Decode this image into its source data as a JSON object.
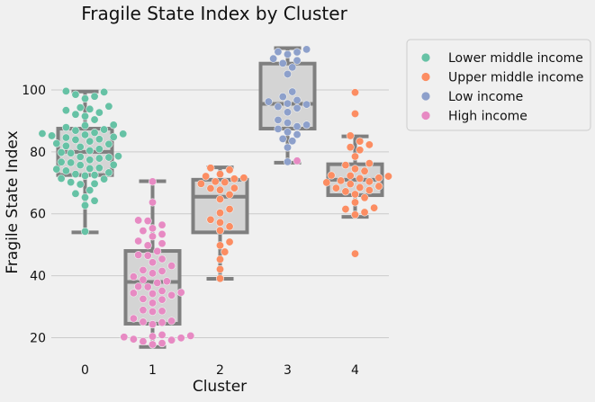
{
  "chart_data": {
    "type": "boxplot-swarm",
    "title": "Fragile State Index by Cluster",
    "xlabel": "Cluster",
    "ylabel": "Fragile State Index",
    "categories": [
      "0",
      "1",
      "2",
      "3",
      "4"
    ],
    "ylim": [
      12,
      118
    ],
    "yticks": [
      20,
      40,
      60,
      80,
      100
    ],
    "grid": "horizontal",
    "legend_position": "outside-right",
    "colors": {
      "Lower middle income": "#66c2a5",
      "Upper middle income": "#fc8d62",
      "Low income": "#8da0cb",
      "High income": "#e78ac3",
      "box_fill": "#d4d4d4",
      "box_edge": "#7f7f7f",
      "grid": "#cbcbcb",
      "background": "#f0f0f0"
    },
    "legend": [
      "Lower middle income",
      "Upper middle income",
      "Low income",
      "High income"
    ],
    "boxes": [
      {
        "category": "0",
        "whisker_low": 54,
        "q1": 72.5,
        "median": 80,
        "q3": 87.5,
        "whisker_high": 99.5
      },
      {
        "category": "1",
        "whisker_low": 17,
        "q1": 24.5,
        "median": 38,
        "q3": 48,
        "whisker_high": 70.5
      },
      {
        "category": "2",
        "whisker_low": 39,
        "q1": 54,
        "median": 65.5,
        "q3": 71,
        "whisker_high": 75
      },
      {
        "category": "3",
        "whisker_low": 76.5,
        "q1": 87.5,
        "median": 95.5,
        "q3": 108.5,
        "whisker_high": 113.5
      },
      {
        "category": "4",
        "whisker_low": 59,
        "q1": 66,
        "median": 71,
        "q3": 76,
        "whisker_high": 85
      }
    ],
    "series": [
      {
        "name": "Lower middle income",
        "category": "0",
        "values": [
          54.3,
          62.7,
          64.2,
          65.3,
          66.5,
          67.6,
          69.5,
          69.7,
          70.2,
          71.2,
          71.4,
          72.3,
          72.5,
          72.8,
          73.3,
          73.9,
          74.4,
          74.6,
          74.8,
          75.7,
          75.8,
          76.5,
          76.7,
          77.4,
          77.9,
          78.2,
          78.4,
          78.6,
          79.6,
          79.8,
          80.4,
          80.9,
          81.6,
          81.9,
          82.5,
          82.7,
          83.4,
          83.9,
          84.1,
          84.6,
          84.8,
          85.2,
          85.5,
          85.8,
          85.9,
          86.2,
          86.9,
          87.2,
          87.9,
          88.5,
          88.7,
          90.4,
          91.5,
          92.1,
          92.7,
          93.4,
          93.8,
          94.3,
          94.7,
          97.2,
          97.9,
          98.5,
          99.3,
          99.6
        ]
      },
      {
        "name": "High income",
        "category": "1",
        "values": [
          17.8,
          18.2,
          18.8,
          19.2,
          19.5,
          19.9,
          20.2,
          20.4,
          20.6,
          20.9,
          24.3,
          24.9,
          25.1,
          25.4,
          26.2,
          28.4,
          28.6,
          28.9,
          31.2,
          32.3,
          32.5,
          33.7,
          34.2,
          34.4,
          34.6,
          35.1,
          36.4,
          36.5,
          37.7,
          38.2,
          38.7,
          39.7,
          40.8,
          41.5,
          41.8,
          43.2,
          44.3,
          45.4,
          46.5,
          46.7,
          47.9,
          49.8,
          50.4,
          51.2,
          52.7,
          53.4,
          54.5,
          55.3,
          56.4,
          57.7,
          57.9,
          63.7,
          70.4
        ]
      },
      {
        "name": "Upper middle income",
        "category": "2",
        "values": [
          39.1,
          42.1,
          45.3,
          47.7,
          49.8,
          50.9,
          54.6,
          55.9,
          57.2,
          58.1,
          60.3,
          61.5,
          64.7,
          66.2,
          67.7,
          68.2,
          68.3,
          69.7,
          70.2,
          70.4,
          71.3,
          71.6,
          72.1,
          72.8,
          74.2,
          74.8
        ]
      },
      {
        "name": "Low income",
        "category": "3",
        "values": [
          76.8,
          81.4,
          83.5,
          84.2,
          85.6,
          86.4,
          87.4,
          88.2,
          88.7,
          89.4,
          90.3,
          92.8,
          94.1,
          94.6,
          95.3,
          95.6,
          96.2,
          96.7,
          97.8,
          99.4,
          105.1,
          107.3,
          108.6,
          109.5,
          110.1,
          111.5,
          112.2,
          112.3,
          113.1
        ]
      },
      {
        "name": "High income",
        "category": "3",
        "values": [
          77.1
        ]
      },
      {
        "name": "Upper middle income",
        "category": "4",
        "values": [
          47.1,
          59.7,
          60.5,
          61.5,
          61.9,
          63.7,
          65.2,
          66.3,
          67.2,
          67.6,
          68.3,
          68.5,
          68.9,
          69.6,
          70.1,
          70.4,
          70.7,
          71.4,
          71.6,
          72.1,
          72.3,
          72.4,
          73.8,
          74.5,
          75.7,
          76.3,
          78.5,
          80.6,
          81.5,
          82.3,
          83.4,
          85.2,
          92.3,
          99.2
        ]
      }
    ]
  }
}
